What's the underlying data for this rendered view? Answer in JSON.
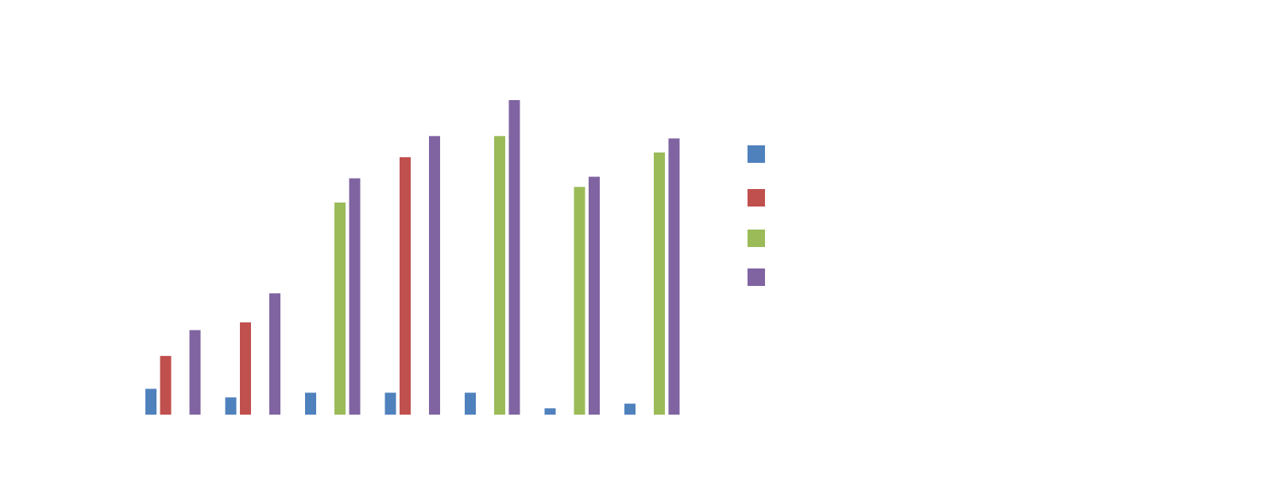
{
  "chart_data": {
    "type": "bar",
    "title": "",
    "xlabel": "",
    "ylabel": "",
    "categories": [
      "",
      "",
      "",
      "",
      "",
      "",
      ""
    ],
    "ylim": [
      0,
      400
    ],
    "grid": false,
    "legend_position": "right",
    "series": [
      {
        "color": "#4F81BD",
        "values": [
          33,
          22,
          28,
          28,
          28,
          8,
          14
        ]
      },
      {
        "color": "#C0504D",
        "values": [
          75,
          118,
          null,
          329,
          null,
          null,
          null
        ]
      },
      {
        "color": "#9BBB59",
        "values": [
          null,
          null,
          271,
          null,
          356,
          291,
          335
        ]
      },
      {
        "color": "#8064A2",
        "values": [
          108,
          155,
          302,
          356,
          402,
          304,
          353
        ]
      }
    ]
  }
}
